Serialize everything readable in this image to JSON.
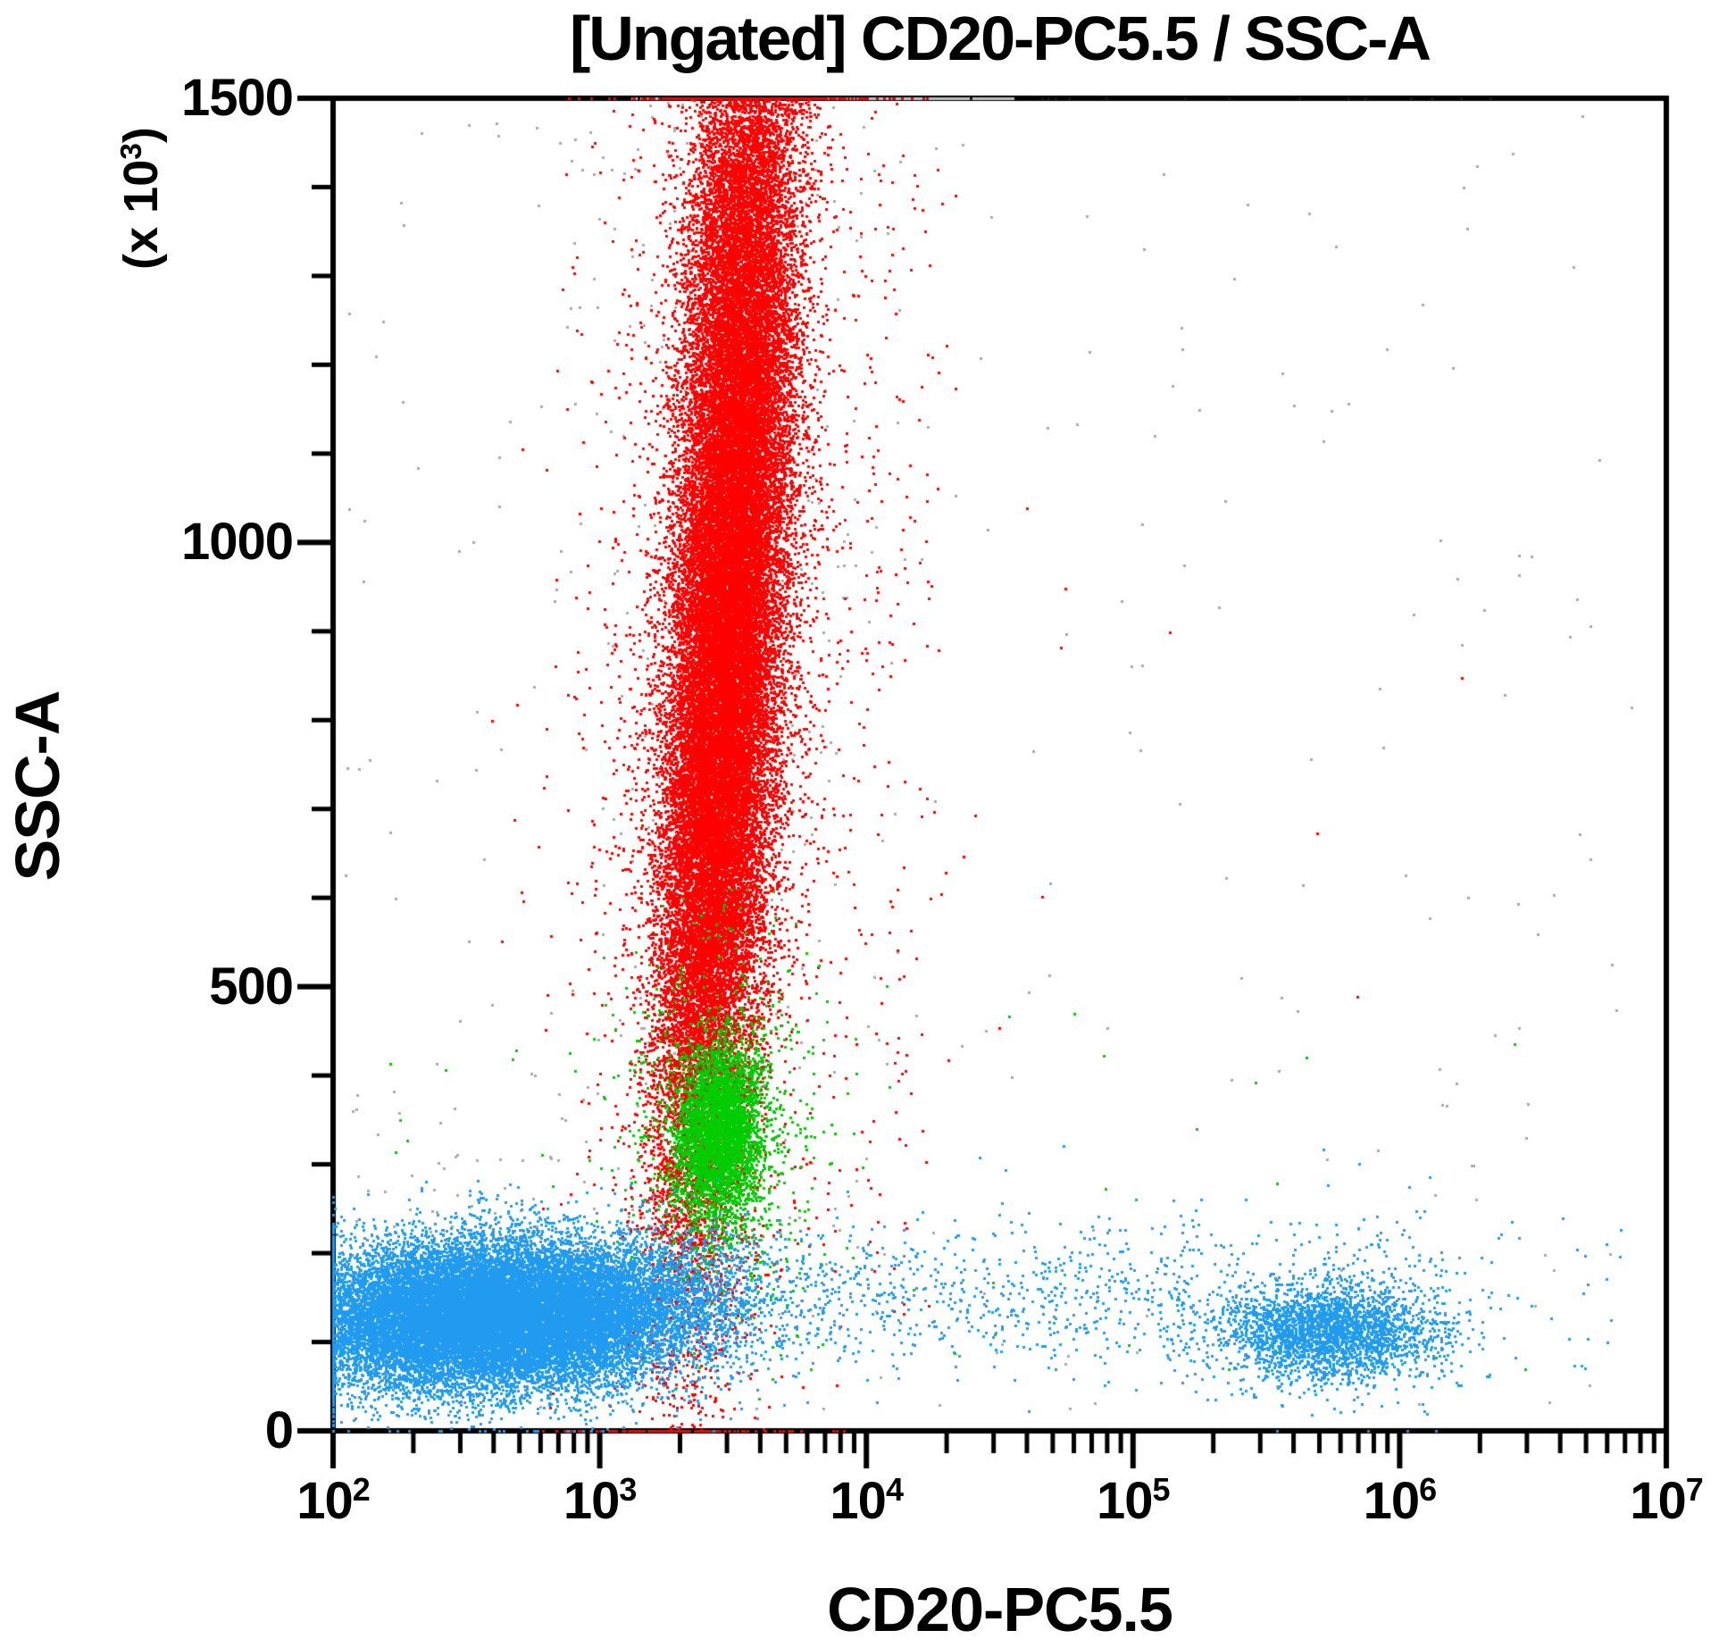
{
  "title": "[Ungated] CD20-PC5.5 / SSC-A",
  "chart_data": {
    "type": "scatter",
    "subtype": "flow-cytometry-dot-plot",
    "title": "[Ungated] CD20-PC5.5 / SSC-A",
    "grid": false,
    "legend": "none",
    "seed": 1234,
    "dot_size_px": 3,
    "frame_color": "#000000",
    "x_axis": {
      "label": "CD20-PC5.5",
      "scale": "log10",
      "min_exp": 2,
      "max_exp": 7,
      "tick_exponents": [
        2,
        3,
        4,
        5,
        6,
        7
      ],
      "tick_base": "10",
      "minor_mantissas": [
        2,
        3,
        4,
        5,
        6,
        7,
        8,
        9
      ]
    },
    "y_axis": {
      "label": "SSC-A",
      "unit_prefix": "(x 10",
      "unit_exponent": "3",
      "unit_suffix": ")",
      "scale": "linear",
      "min": 0,
      "max": 1500,
      "major_ticks": [
        0,
        500,
        1000,
        1500
      ],
      "minor_step": 100
    },
    "populations": [
      {
        "name": "debris-uniform",
        "color": "#A9A9A9",
        "n": 230,
        "x": {
          "dist": "uniform",
          "min": 2.02,
          "max": 6.9
        },
        "y": {
          "dist": "uniform",
          "min": 20,
          "max": 1480
        }
      },
      {
        "name": "debris-granulocyte-zone",
        "color": "#A9A9A9",
        "n": 430,
        "x": {
          "dist": "normal",
          "mu": 3.45,
          "sigma": 0.3
        },
        "y": {
          "dist": "uniform",
          "min": 120,
          "max": 1495
        }
      },
      {
        "name": "debris-lymph-zone",
        "color": "#A9A9A9",
        "n": 120,
        "x": {
          "dist": "normal",
          "mu": 2.7,
          "sigma": 0.35
        },
        "y": {
          "dist": "normal",
          "mu": 190,
          "sigma": 90
        }
      },
      {
        "name": "ssc-max-pileup-band",
        "color": "#BFBFBF",
        "n": 900,
        "x": {
          "dist": "uniform",
          "min": 3.12,
          "max": 4.55
        },
        "y": {
          "dist": "uniform",
          "min": 1500,
          "max": 1500
        }
      },
      {
        "name": "ssc-max-pileup-dots",
        "color": "#1A1A1A",
        "n": 26,
        "x": {
          "dist": "uniform",
          "min": 3.05,
          "max": 6.75
        },
        "y": {
          "dist": "uniform",
          "min": 1500,
          "max": 1500
        }
      },
      {
        "name": "granulocytes-core",
        "color": "#FF0000",
        "n": 32000,
        "x": {
          "dist": "normal",
          "mu": 3.47,
          "sigma": 0.12
        },
        "y": {
          "dist": "normal",
          "mu": 840,
          "sigma": 300
        },
        "rho": 0.5
      },
      {
        "name": "granulocytes-high-ssc",
        "color": "#FF0000",
        "n": 7000,
        "x": {
          "dist": "normal",
          "mu": 3.52,
          "sigma": 0.11
        },
        "y": {
          "dist": "normal",
          "mu": 1320,
          "sigma": 180
        },
        "rho": 0.3
      },
      {
        "name": "granulocytes-halo",
        "color": "#FF0000",
        "n": 2300,
        "x": {
          "dist": "normal",
          "mu": 3.47,
          "sigma": 0.27
        },
        "y": {
          "dist": "normal",
          "mu": 880,
          "sigma": 430
        },
        "rho": 0.2
      },
      {
        "name": "red-right-column",
        "color": "#FF0000",
        "n": 130,
        "x": {
          "dist": "normal",
          "mu": 4.12,
          "sigma": 0.13
        },
        "y": {
          "dist": "uniform",
          "min": 120,
          "max": 1440
        }
      },
      {
        "name": "red-scattered-right",
        "color": "#FF0000",
        "n": 9,
        "x": {
          "dist": "uniform",
          "min": 4.45,
          "max": 6.25
        },
        "y": {
          "dist": "uniform",
          "min": 430,
          "max": 1060
        }
      },
      {
        "name": "monocytes-core",
        "color": "#00CC00",
        "n": 3600,
        "x": {
          "dist": "normal",
          "mu": 3.45,
          "sigma": 0.08
        },
        "y": {
          "dist": "normal",
          "mu": 335,
          "sigma": 50
        },
        "rho": 0.1
      },
      {
        "name": "monocytes-halo",
        "color": "#00CC00",
        "n": 900,
        "x": {
          "dist": "normal",
          "mu": 3.46,
          "sigma": 0.19
        },
        "y": {
          "dist": "normal",
          "mu": 330,
          "sigma": 110
        }
      },
      {
        "name": "green-scattered-left",
        "color": "#00CC00",
        "n": 12,
        "x": {
          "dist": "uniform",
          "min": 2.15,
          "max": 3.05
        },
        "y": {
          "dist": "uniform",
          "min": 230,
          "max": 430
        }
      },
      {
        "name": "green-scattered-right",
        "color": "#00CC00",
        "n": 22,
        "x": {
          "dist": "uniform",
          "min": 3.95,
          "max": 6.6
        },
        "y": {
          "dist": "uniform",
          "min": 40,
          "max": 470
        }
      },
      {
        "name": "lymphocytes",
        "color": "#219BEF",
        "n": 24000,
        "x": {
          "dist": "normal",
          "mu": 2.62,
          "sigma": 0.38
        },
        "y": {
          "dist": "normal",
          "mu": 130,
          "sigma": 41
        },
        "rho": 0.08
      },
      {
        "name": "lymphocytes-tail",
        "color": "#219BEF",
        "n": 780,
        "x": {
          "dist": "uniform",
          "min": 3.38,
          "max": 5.25
        },
        "y": {
          "dist": "normal",
          "mu": 150,
          "sigma": 42
        }
      },
      {
        "name": "bcells-core",
        "color": "#219BEF",
        "n": 2500,
        "x": {
          "dist": "normal",
          "mu": 5.73,
          "sigma": 0.2
        },
        "y": {
          "dist": "normal",
          "mu": 112,
          "sigma": 27
        }
      },
      {
        "name": "bcells-halo",
        "color": "#219BEF",
        "n": 430,
        "x": {
          "dist": "normal",
          "mu": 5.75,
          "sigma": 0.32
        },
        "y": {
          "dist": "normal",
          "mu": 135,
          "sigma": 60
        }
      },
      {
        "name": "bcells-far-right",
        "color": "#219BEF",
        "n": 22,
        "x": {
          "dist": "uniform",
          "min": 6.35,
          "max": 6.85
        },
        "y": {
          "dist": "uniform",
          "min": 60,
          "max": 240
        }
      }
    ]
  }
}
